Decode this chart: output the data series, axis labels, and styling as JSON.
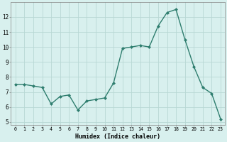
{
  "x": [
    0,
    1,
    2,
    3,
    4,
    5,
    6,
    7,
    8,
    9,
    10,
    11,
    12,
    13,
    14,
    15,
    16,
    17,
    18,
    19,
    20,
    21,
    22,
    23
  ],
  "y": [
    7.5,
    7.5,
    7.4,
    7.3,
    6.2,
    6.7,
    6.8,
    5.8,
    6.4,
    6.5,
    6.6,
    7.6,
    9.9,
    10.0,
    10.1,
    10.0,
    11.4,
    12.3,
    12.5,
    10.5,
    8.7,
    7.3,
    6.9,
    5.2
  ],
  "xlabel": "Humidex (Indice chaleur)",
  "xlim": [
    -0.5,
    23.5
  ],
  "ylim": [
    4.8,
    13.0
  ],
  "yticks": [
    5,
    6,
    7,
    8,
    9,
    10,
    11,
    12
  ],
  "xticks": [
    0,
    1,
    2,
    3,
    4,
    5,
    6,
    7,
    8,
    9,
    10,
    11,
    12,
    13,
    14,
    15,
    16,
    17,
    18,
    19,
    20,
    21,
    22,
    23
  ],
  "line_color": "#2e7d6e",
  "marker_color": "#2e7d6e",
  "bg_color": "#d8f0ee",
  "grid_color": "#b8d8d4"
}
